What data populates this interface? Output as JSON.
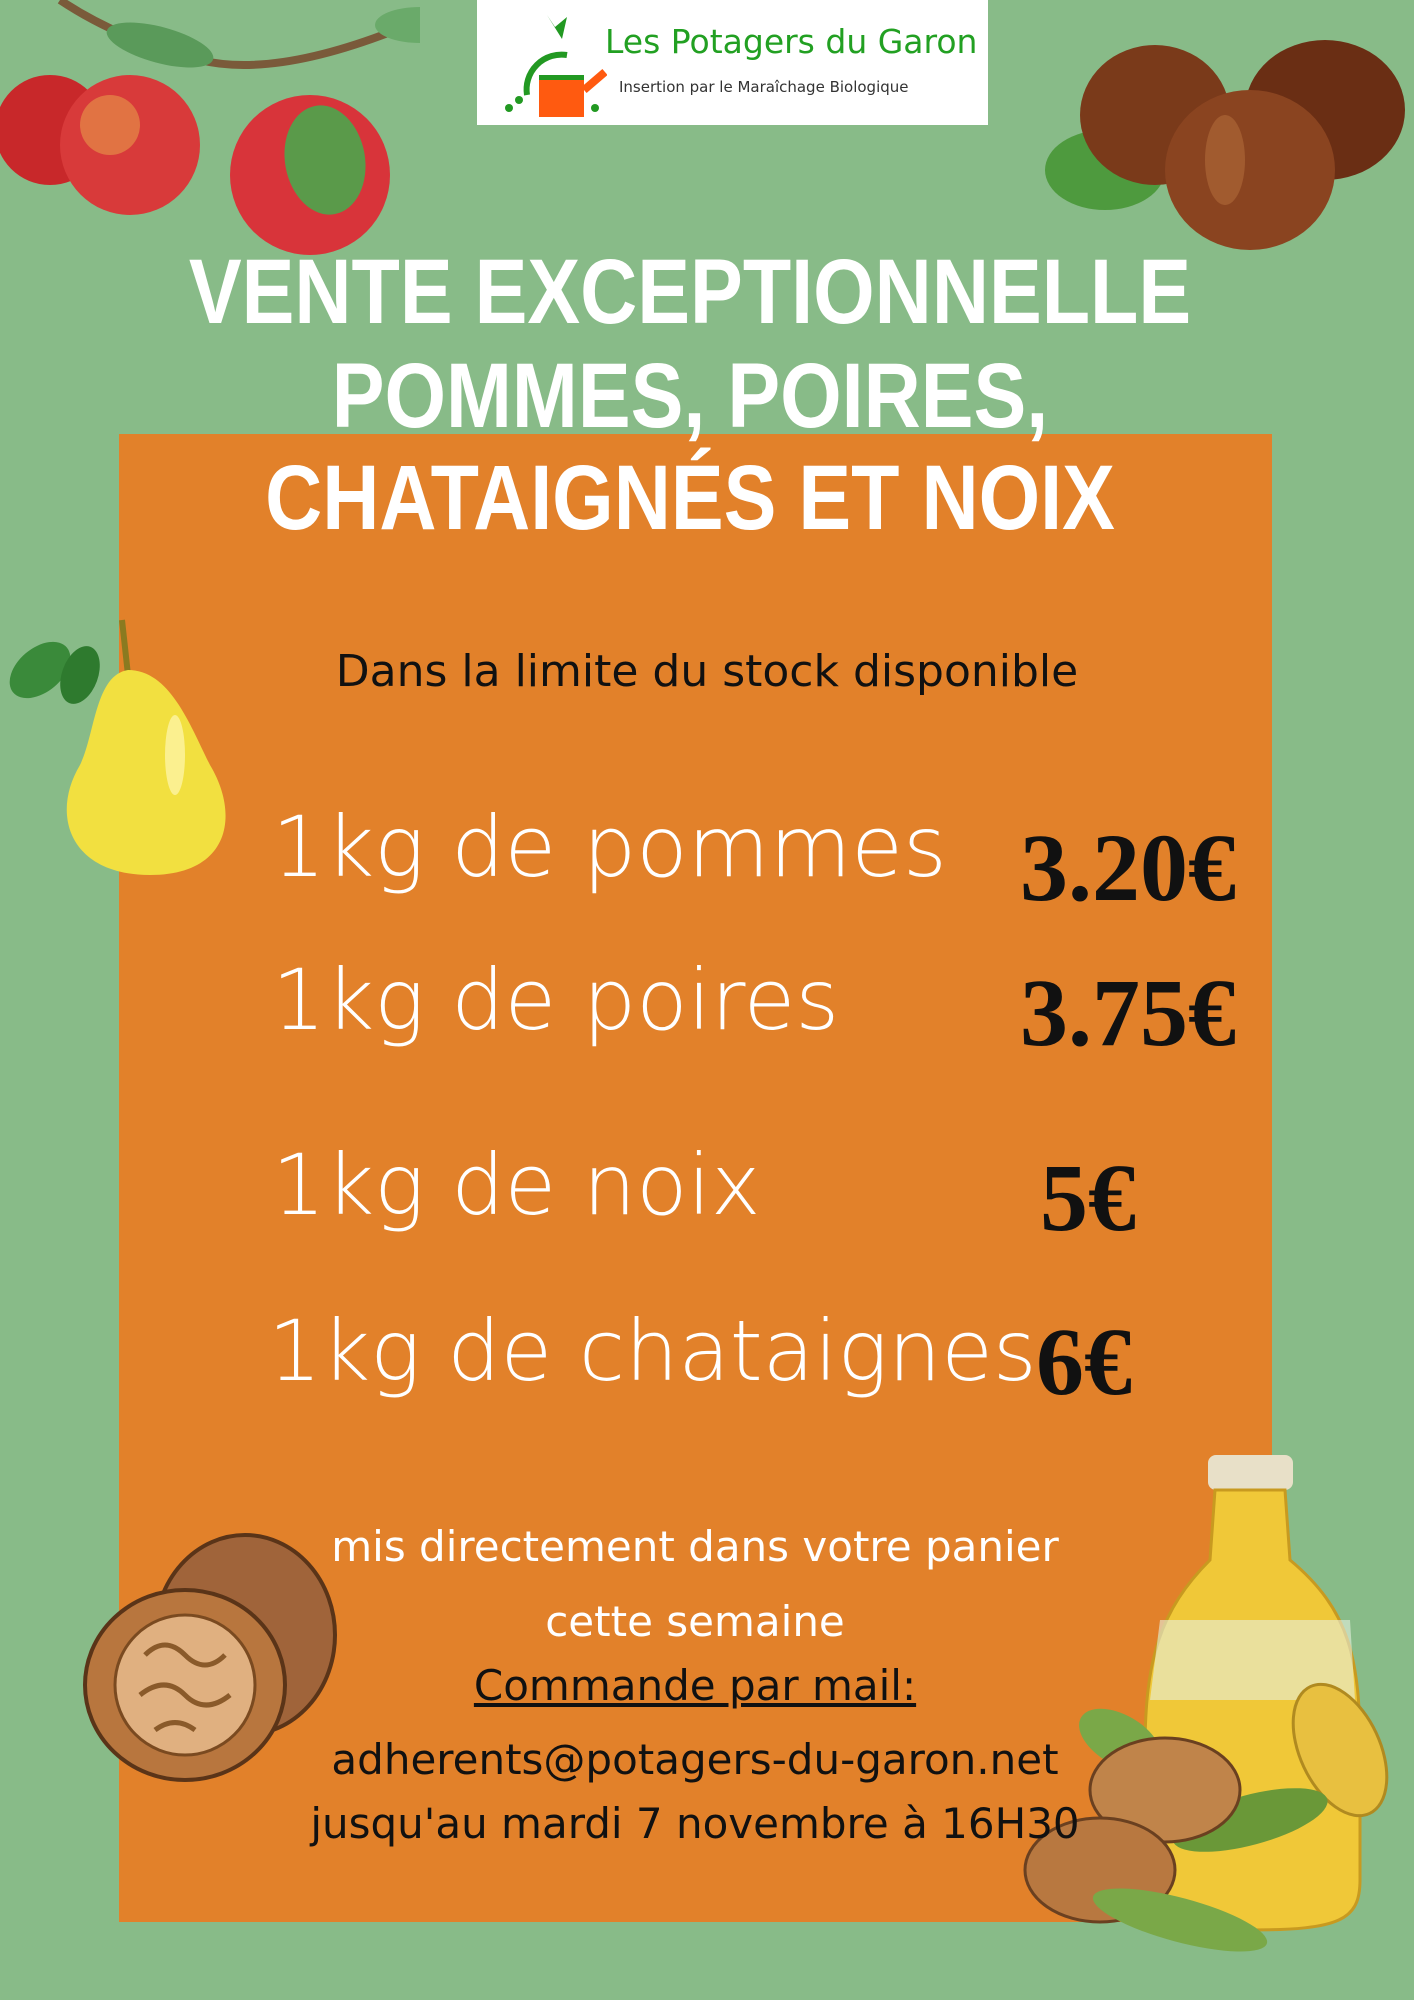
{
  "logo": {
    "name": "Les Potagers du Garon",
    "tagline": "Insertion par le Maraîchage Biologique"
  },
  "title": {
    "lines": [
      "VENTE EXCEPTIONNELLE",
      "POMMES, POIRES,",
      "CHATAIGNÉS ET NOIX"
    ]
  },
  "subtitle": "Dans la limite du stock disponible",
  "items": [
    {
      "label": "1kg de pommes",
      "price": "3.20€"
    },
    {
      "label": "1kg de poires",
      "price": "3.75€"
    },
    {
      "label": "1kg de noix",
      "price": "5€"
    },
    {
      "label": "1kg de chataignes",
      "price": "6€"
    }
  ],
  "footer": {
    "line1": "mis directement dans votre panier",
    "line2": "cette semaine",
    "order_label": "Commande par mail:",
    "email": "adherents@potagers-du-garon.net",
    "deadline": "jusqu'au mardi 7 novembre à 16H30"
  },
  "colors": {
    "background": "#88bb88",
    "panel": "#e2812a",
    "logo_green": "#22a022"
  },
  "icons": [
    "apples-illustration",
    "chestnuts-illustration",
    "pear-illustration",
    "walnut-illustration",
    "oil-bottle-illustration",
    "watering-can-logo"
  ]
}
